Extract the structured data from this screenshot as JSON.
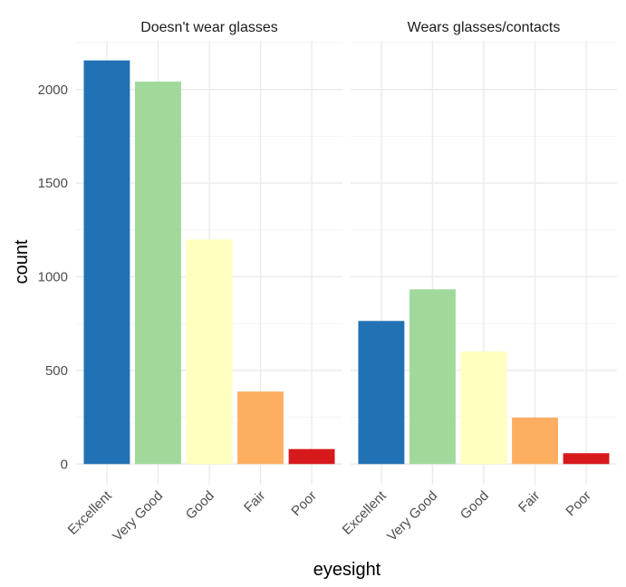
{
  "chart_data": {
    "type": "bar",
    "xlabel": "eyesight",
    "ylabel": "count",
    "ylim": [
      -110,
      2260
    ],
    "yticks": [
      0,
      500,
      1000,
      1500,
      2000
    ],
    "grid": true,
    "categories": [
      "Excellent",
      "Very Good",
      "Good",
      "Fair",
      "Poor"
    ],
    "colors": [
      "#2171b5",
      "#a1d99b",
      "#ffffbf",
      "#fdae61",
      "#d7191c"
    ],
    "panels": [
      {
        "title": "Doesn't wear glasses",
        "values": [
          2155,
          2042,
          1199,
          387,
          80
        ]
      },
      {
        "title": "Wears glasses/contacts",
        "values": [
          764,
          933,
          602,
          248,
          58
        ]
      }
    ]
  }
}
